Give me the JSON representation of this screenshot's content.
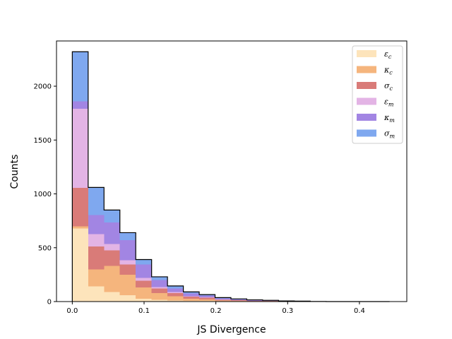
{
  "chart_data": {
    "type": "bar",
    "subtype": "stacked-histogram",
    "title": "",
    "xlabel": "JS Divergence",
    "ylabel": "Counts",
    "xlim": [
      -0.022,
      0.466
    ],
    "ylim": [
      0,
      2420
    ],
    "x_ticks": [
      0.0,
      0.1,
      0.2,
      0.3,
      0.4
    ],
    "x_tick_labels": [
      "0.0",
      "0.1",
      "0.2",
      "0.3",
      "0.4"
    ],
    "y_ticks": [
      0,
      500,
      1000,
      1500,
      2000
    ],
    "y_tick_labels": [
      "0",
      "500",
      "1000",
      "1500",
      "2000"
    ],
    "grid": false,
    "legend_position": "top-right",
    "bin_edges": [
      0.0,
      0.0221,
      0.0442,
      0.0663,
      0.0884,
      0.1105,
      0.1326,
      0.1547,
      0.1768,
      0.1989,
      0.221,
      0.2431,
      0.2652,
      0.2873,
      0.3094,
      0.3315,
      0.3536,
      0.3757,
      0.3978,
      0.4199,
      0.442
    ],
    "series": [
      {
        "name": "εc",
        "label_main": "ε",
        "label_sub": "c",
        "color": "#fde4bb",
        "values": [
          680,
          140,
          90,
          60,
          25,
          15,
          10,
          5,
          5,
          3,
          2,
          1,
          1,
          0,
          0,
          0,
          0,
          0,
          0,
          0
        ]
      },
      {
        "name": "κc",
        "label_main": "κ",
        "label_sub": "c",
        "color": "#f5b57d",
        "values": [
          20,
          160,
          240,
          190,
          105,
          65,
          40,
          20,
          15,
          7,
          5,
          3,
          2,
          1,
          1,
          0,
          0,
          0,
          0,
          0
        ]
      },
      {
        "name": "σc",
        "label_main": "σ",
        "label_sub": "c",
        "color": "#d97b78",
        "values": [
          355,
          210,
          145,
          95,
          65,
          40,
          30,
          20,
          15,
          8,
          5,
          3,
          2,
          1,
          1,
          0,
          0,
          0,
          0,
          0
        ]
      },
      {
        "name": "εm",
        "label_main": "ε",
        "label_sub": "m",
        "color": "#e3b4e5",
        "values": [
          735,
          115,
          60,
          40,
          25,
          15,
          10,
          5,
          5,
          3,
          2,
          1,
          1,
          0,
          0,
          0,
          0,
          0,
          0,
          0
        ]
      },
      {
        "name": "κm",
        "label_main": "κ",
        "label_sub": "m",
        "color": "#a285e3",
        "values": [
          70,
          180,
          200,
          185,
          125,
          65,
          30,
          25,
          15,
          9,
          6,
          4,
          3,
          2,
          1,
          0,
          0,
          0,
          0,
          0
        ]
      },
      {
        "name": "σm",
        "label_main": "σ",
        "label_sub": "m",
        "color": "#7fa8ef",
        "values": [
          460,
          255,
          115,
          70,
          45,
          30,
          25,
          15,
          10,
          7,
          5,
          4,
          3,
          2,
          1,
          1,
          0,
          0,
          0,
          0
        ]
      }
    ]
  }
}
